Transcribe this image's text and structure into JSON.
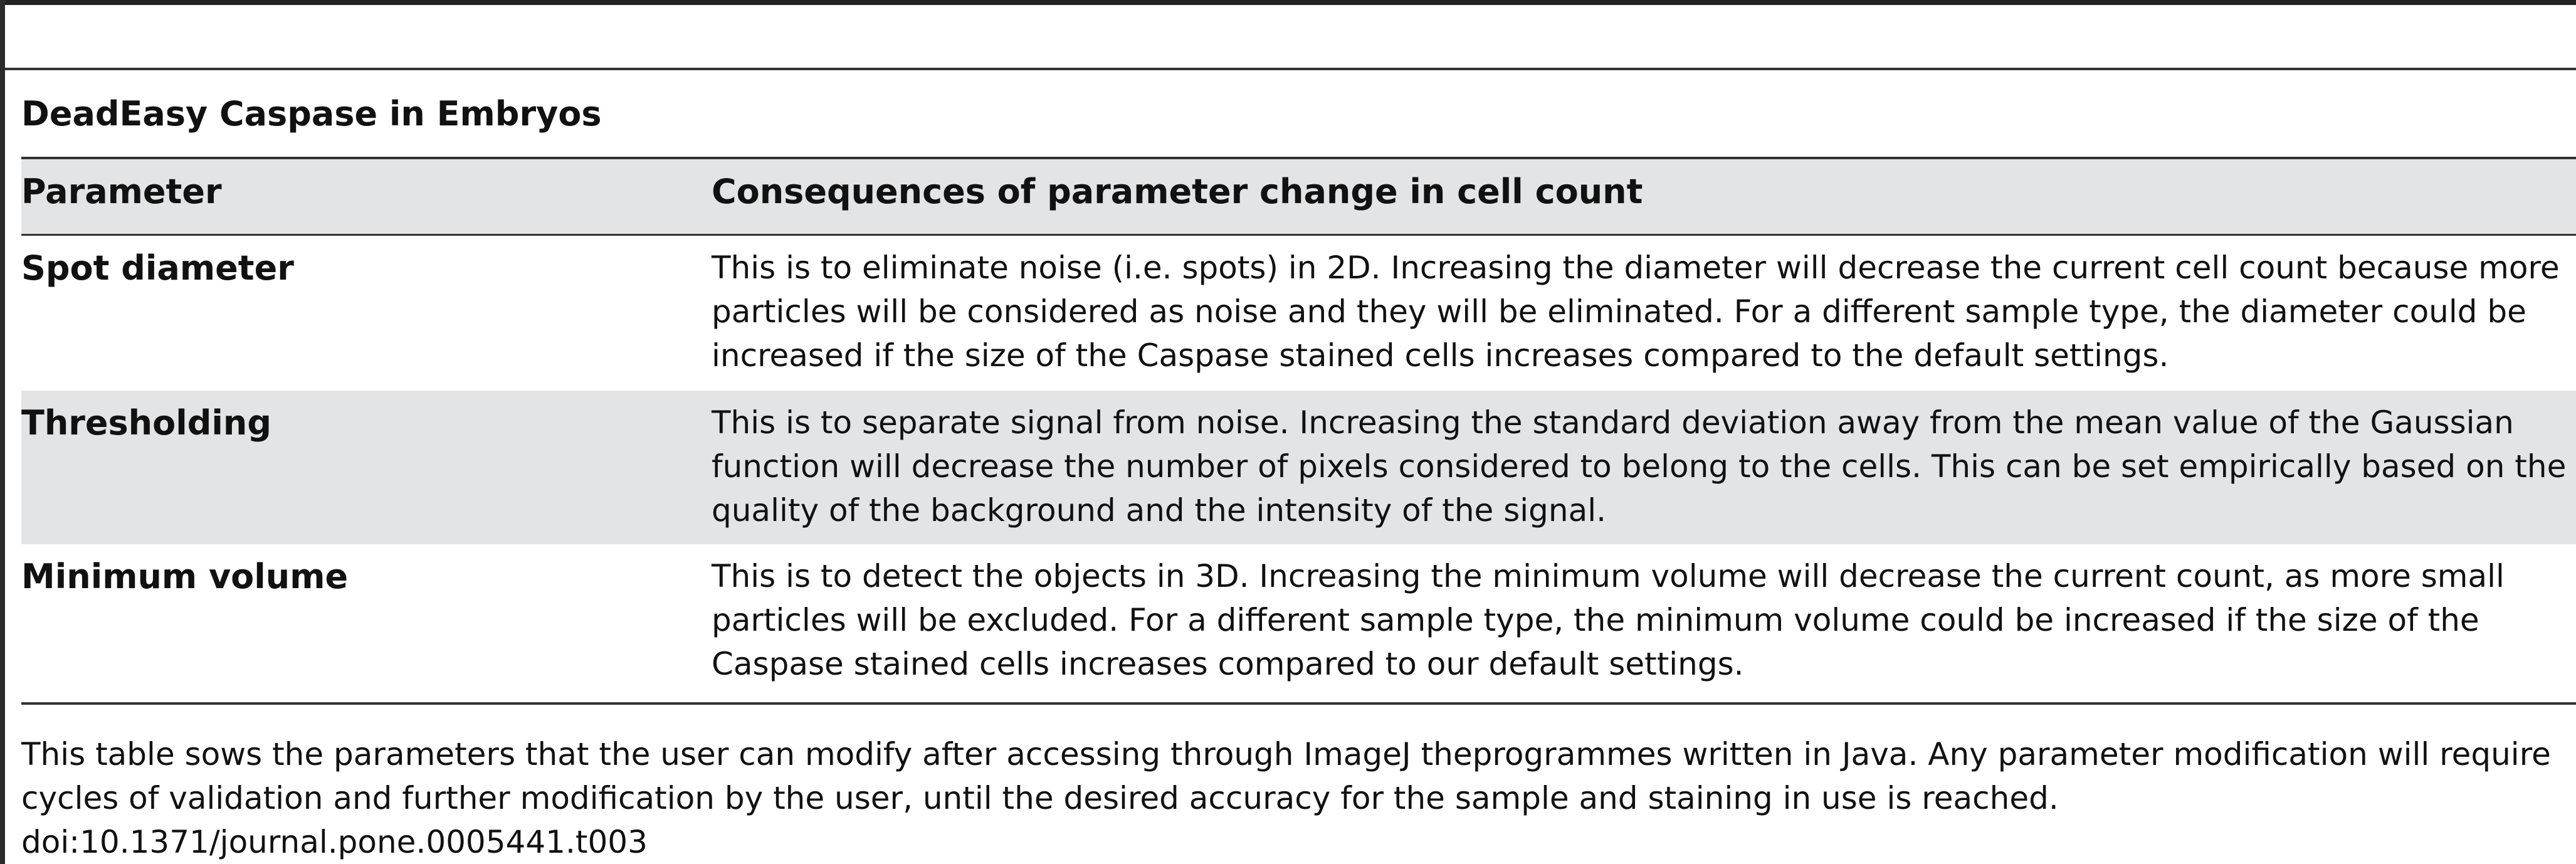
{
  "table": {
    "title": "DeadEasy Caspase in Embryos",
    "headers": {
      "parameter": "Parameter",
      "consequences": "Consequences of parameter change in cell count"
    },
    "rows": [
      {
        "parameter": "Spot diameter",
        "consequence": "This is to eliminate noise (i.e. spots) in 2D. Increasing the diameter will decrease the current cell count because more particles will be considered as noise and they will be eliminated. For a different sample type, the diameter could be increased if the size of the Caspase stained cells increases compared to the default settings."
      },
      {
        "parameter": "Thresholding",
        "consequence": "This is to separate signal from noise. Increasing the standard deviation away from the mean value of the Gaussian function will decrease the number of pixels considered to belong to the cells. This can be set empirically based on the quality of the background and the intensity of the signal."
      },
      {
        "parameter": "Minimum volume",
        "consequence": "This is to detect the objects in 3D. Increasing the minimum volume will decrease the current count, as more small particles will be excluded. For a different sample type, the minimum volume could be increased if the size of the Caspase stained cells increases compared to our default settings."
      }
    ],
    "footnote": "This table sows the parameters that the user can modify after accessing through ImageJ theprogrammes written in Java. Any parameter modification will require cycles of validation and further modification by the user, until the desired accuracy for the sample and staining in use is reached.",
    "doi": "doi:10.1371/journal.pone.0005441.t003"
  }
}
